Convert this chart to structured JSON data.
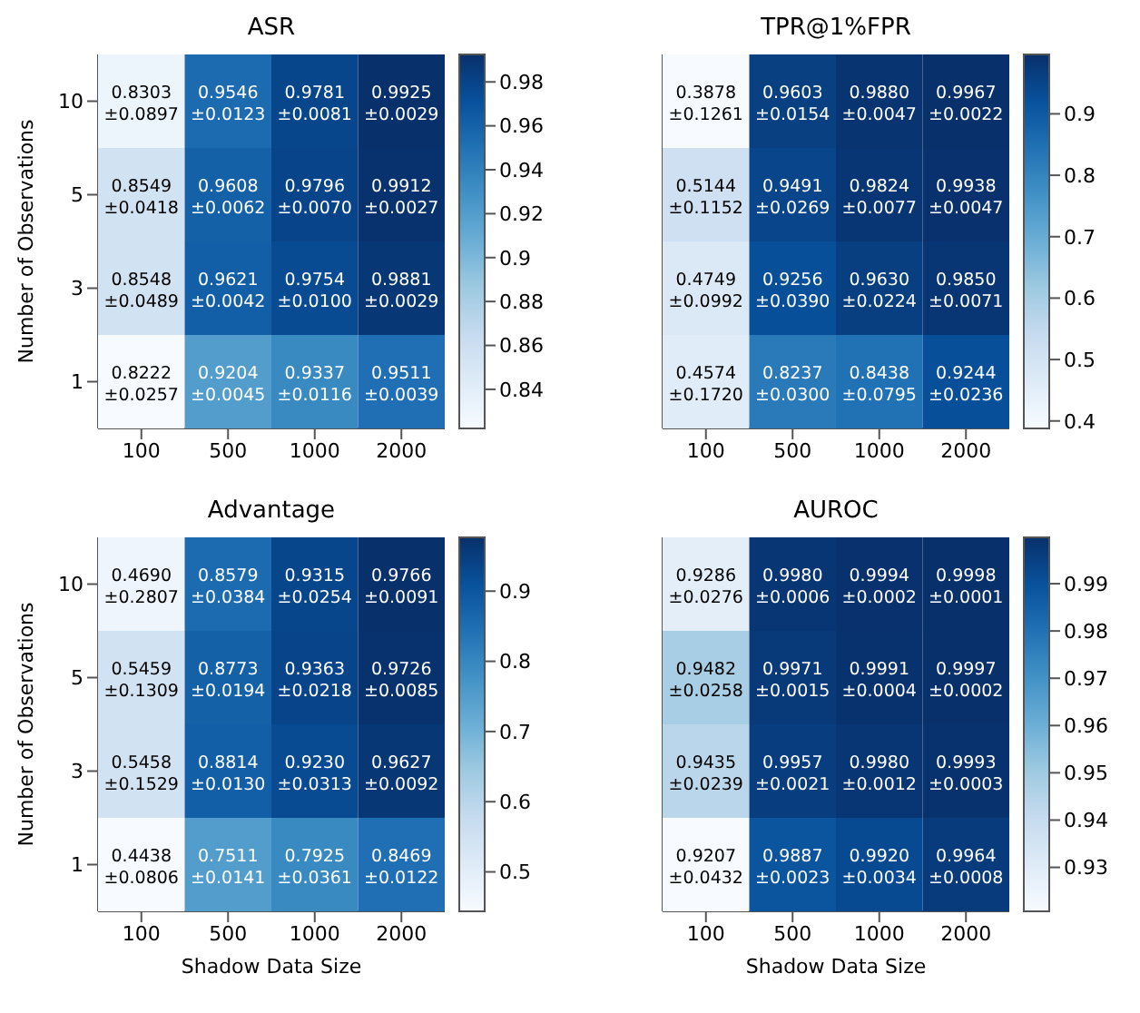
{
  "chart_data": [
    {
      "type": "heatmap",
      "title": "ASR",
      "ylabel": "Number of Observations",
      "categories": [
        "100",
        "500",
        "1000",
        "2000"
      ],
      "y_categories": [
        "10",
        "5",
        "3",
        "1"
      ],
      "cells": [
        [
          0.8303,
          0.9546,
          0.9781,
          0.9925
        ],
        [
          0.8549,
          0.9608,
          0.9796,
          0.9912
        ],
        [
          0.8548,
          0.9621,
          0.9754,
          0.9881
        ],
        [
          0.8222,
          0.9204,
          0.9337,
          0.9511
        ]
      ],
      "cell_labels": [
        [
          "0.8303\n±0.0897",
          "0.9546\n±0.0123",
          "0.9781\n±0.0081",
          "0.9925\n±0.0029"
        ],
        [
          "0.8549\n±0.0418",
          "0.9608\n±0.0062",
          "0.9796\n±0.0070",
          "0.9912\n±0.0027"
        ],
        [
          "0.8548\n±0.0489",
          "0.9621\n±0.0042",
          "0.9754\n±0.0100",
          "0.9881\n±0.0029"
        ],
        [
          "0.8222\n±0.0257",
          "0.9204\n±0.0045",
          "0.9337\n±0.0116",
          "0.9511\n±0.0039"
        ]
      ],
      "clim": [
        0.8222,
        0.9925
      ],
      "cticks": [
        0.84,
        0.86,
        0.88,
        0.9,
        0.92,
        0.94,
        0.96,
        0.98
      ]
    },
    {
      "type": "heatmap",
      "title": "TPR@1%FPR",
      "categories": [
        "100",
        "500",
        "1000",
        "2000"
      ],
      "y_categories": [
        "10",
        "5",
        "3",
        "1"
      ],
      "tick_labels": "x",
      "cells": [
        [
          0.3878,
          0.9603,
          0.988,
          0.9967
        ],
        [
          0.5144,
          0.9491,
          0.9824,
          0.9938
        ],
        [
          0.4749,
          0.9256,
          0.963,
          0.985
        ],
        [
          0.4574,
          0.8237,
          0.8438,
          0.9244
        ]
      ],
      "cell_labels": [
        [
          "0.3878\n±0.1261",
          "0.9603\n±0.0154",
          "0.9880\n±0.0047",
          "0.9967\n±0.0022"
        ],
        [
          "0.5144\n±0.1152",
          "0.9491\n±0.0269",
          "0.9824\n±0.0077",
          "0.9938\n±0.0047"
        ],
        [
          "0.4749\n±0.0992",
          "0.9256\n±0.0390",
          "0.9630\n±0.0224",
          "0.9850\n±0.0071"
        ],
        [
          "0.4574\n±0.1720",
          "0.8237\n±0.0300",
          "0.8438\n±0.0795",
          "0.9244\n±0.0236"
        ]
      ],
      "clim": [
        0.3878,
        0.9967
      ],
      "cticks": [
        0.4,
        0.5,
        0.6,
        0.7,
        0.8,
        0.9
      ]
    },
    {
      "type": "heatmap",
      "title": "Advantage",
      "ylabel": "Number of Observations",
      "xlabel": "Shadow Data Size",
      "categories": [
        "100",
        "500",
        "1000",
        "2000"
      ],
      "y_categories": [
        "10",
        "5",
        "3",
        "1"
      ],
      "cells": [
        [
          0.469,
          0.8579,
          0.9315,
          0.9766
        ],
        [
          0.5459,
          0.8773,
          0.9363,
          0.9726
        ],
        [
          0.5458,
          0.8814,
          0.923,
          0.9627
        ],
        [
          0.4438,
          0.7511,
          0.7925,
          0.8469
        ]
      ],
      "cell_labels": [
        [
          "0.4690\n±0.2807",
          "0.8579\n±0.0384",
          "0.9315\n±0.0254",
          "0.9766\n±0.0091"
        ],
        [
          "0.5459\n±0.1309",
          "0.8773\n±0.0194",
          "0.9363\n±0.0218",
          "0.9726\n±0.0085"
        ],
        [
          "0.5458\n±0.1529",
          "0.8814\n±0.0130",
          "0.9230\n±0.0313",
          "0.9627\n±0.0092"
        ],
        [
          "0.4438\n±0.0806",
          "0.7511\n±0.0141",
          "0.7925\n±0.0361",
          "0.8469\n±0.0122"
        ]
      ],
      "clim": [
        0.4438,
        0.9766
      ],
      "cticks": [
        0.5,
        0.6,
        0.7,
        0.8,
        0.9
      ]
    },
    {
      "type": "heatmap",
      "title": "AUROC",
      "xlabel": "Shadow Data Size",
      "categories": [
        "100",
        "500",
        "1000",
        "2000"
      ],
      "y_categories": [
        "10",
        "5",
        "3",
        "1"
      ],
      "tick_labels": "x",
      "cells": [
        [
          0.9286,
          0.998,
          0.9994,
          0.9998
        ],
        [
          0.9482,
          0.9971,
          0.9991,
          0.9997
        ],
        [
          0.9435,
          0.9957,
          0.998,
          0.9993
        ],
        [
          0.9207,
          0.9887,
          0.992,
          0.9964
        ]
      ],
      "cell_labels": [
        [
          "0.9286\n±0.0276",
          "0.9980\n±0.0006",
          "0.9994\n±0.0002",
          "0.9998\n±0.0001"
        ],
        [
          "0.9482\n±0.0258",
          "0.9971\n±0.0015",
          "0.9991\n±0.0004",
          "0.9997\n±0.0002"
        ],
        [
          "0.9435\n±0.0239",
          "0.9957\n±0.0021",
          "0.9980\n±0.0012",
          "0.9993\n±0.0003"
        ],
        [
          "0.9207\n±0.0432",
          "0.9887\n±0.0023",
          "0.9920\n±0.0034",
          "0.9964\n±0.0008"
        ]
      ],
      "clim": [
        0.9207,
        0.9998
      ],
      "cticks": [
        0.93,
        0.94,
        0.95,
        0.96,
        0.97,
        0.98,
        0.99
      ]
    }
  ]
}
